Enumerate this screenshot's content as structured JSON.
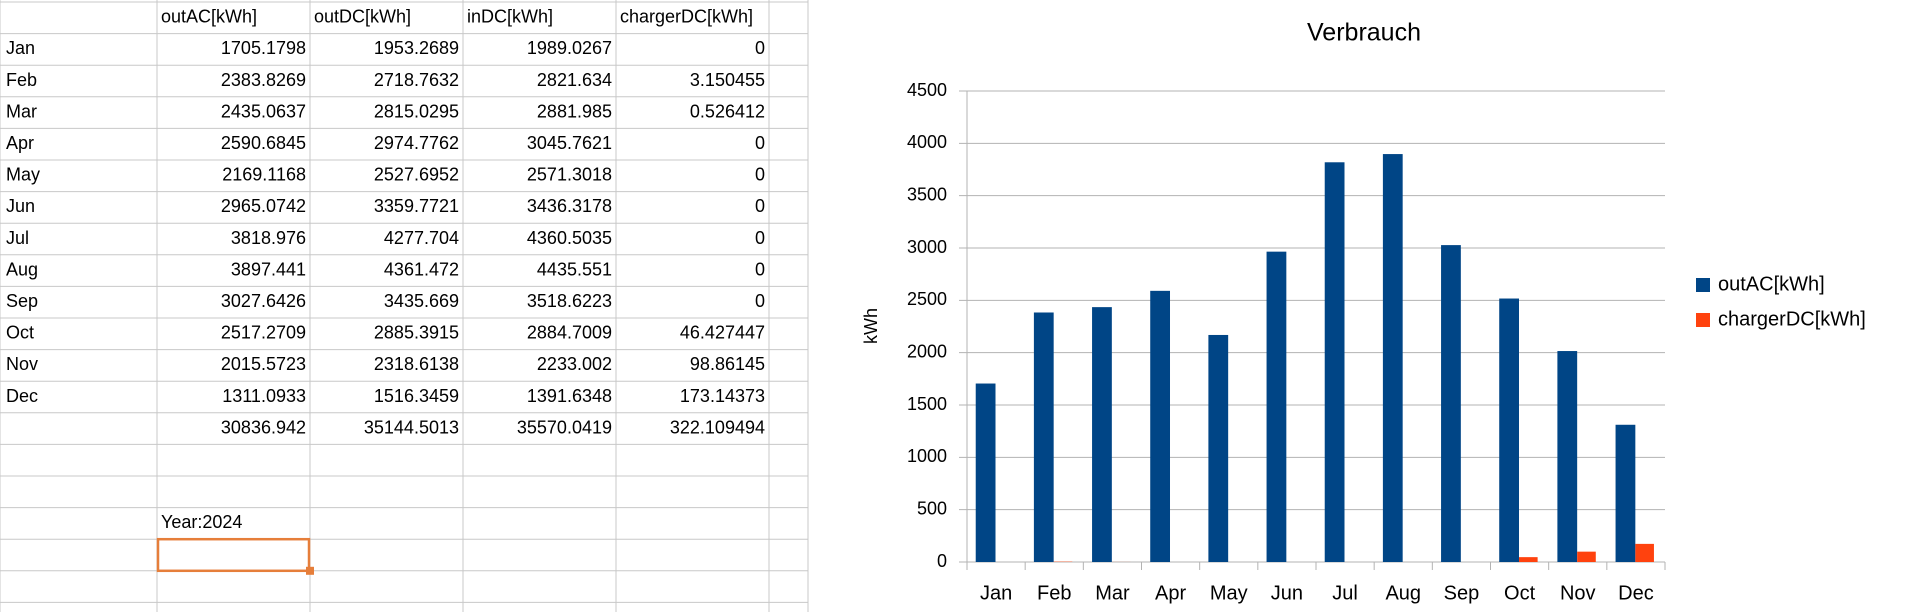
{
  "table": {
    "header": [
      "outAC[kWh]",
      "outDC[kWh]",
      "inDC[kWh]",
      "chargerDC[kWh]"
    ],
    "rows": [
      {
        "label": "Jan",
        "values": [
          1705.1798,
          1953.2689,
          1989.0267,
          0
        ]
      },
      {
        "label": "Feb",
        "values": [
          2383.8269,
          2718.7632,
          2821.634,
          3.150455
        ]
      },
      {
        "label": "Mar",
        "values": [
          2435.0637,
          2815.0295,
          2881.985,
          0.526412
        ]
      },
      {
        "label": "Apr",
        "values": [
          2590.6845,
          2974.7762,
          3045.7621,
          0
        ]
      },
      {
        "label": "May",
        "values": [
          2169.1168,
          2527.6952,
          2571.3018,
          0
        ]
      },
      {
        "label": "Jun",
        "values": [
          2965.0742,
          3359.7721,
          3436.3178,
          0
        ]
      },
      {
        "label": "Jul",
        "values": [
          3818.976,
          4277.704,
          4360.5035,
          0
        ]
      },
      {
        "label": "Aug",
        "values": [
          3897.441,
          4361.472,
          4435.551,
          0
        ]
      },
      {
        "label": "Sep",
        "values": [
          3027.6426,
          3435.669,
          3518.6223,
          0
        ]
      },
      {
        "label": "Oct",
        "values": [
          2517.2709,
          2885.3915,
          2884.7009,
          46.427447
        ]
      },
      {
        "label": "Nov",
        "values": [
          2015.5723,
          2318.6138,
          2233.002,
          98.86145
        ]
      },
      {
        "label": "Dec",
        "values": [
          1311.0933,
          1516.3459,
          1391.6348,
          173.14373
        ]
      }
    ],
    "totals": [
      30836.942,
      35144.5013,
      35570.0419,
      322.109494
    ],
    "year_label": "Year:2024"
  },
  "chart_data": {
    "type": "bar",
    "title": "Verbrauch",
    "y_label": "kWh",
    "categories": [
      "Jan",
      "Feb",
      "Mar",
      "Apr",
      "May",
      "Jun",
      "Jul",
      "Aug",
      "Sep",
      "Oct",
      "Nov",
      "Dec"
    ],
    "series": [
      {
        "name": "outAC[kWh]",
        "color": "#004586",
        "values": [
          1705.1798,
          2383.8269,
          2435.0637,
          2590.6845,
          2169.1168,
          2965.0742,
          3818.976,
          3897.441,
          3027.6426,
          2517.2709,
          2015.5723,
          1311.0933
        ]
      },
      {
        "name": "chargerDC[kWh]",
        "color": "#ff420e",
        "values": [
          0,
          3.150455,
          0.526412,
          0,
          0,
          0,
          0,
          0,
          0,
          46.427447,
          98.86145,
          173.14373
        ]
      }
    ],
    "ylim": [
      0,
      4500
    ],
    "yticks": [
      0,
      500,
      1000,
      1500,
      2000,
      2500,
      3000,
      3500,
      4000,
      4500
    ],
    "grid": true,
    "legend": "right"
  }
}
